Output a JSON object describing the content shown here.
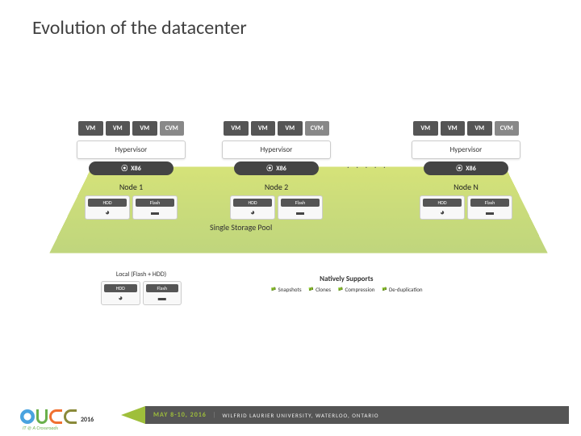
{
  "title": "Evolution of the datacenter",
  "vm_label": "VM",
  "cvm_label": "CVM",
  "hypervisor_label": "Hypervisor",
  "x86_label": "X86",
  "nodes": {
    "n1": "Node 1",
    "n2": "Node 2",
    "n3": "Node N"
  },
  "storage": {
    "hdd": "HDD",
    "flash": "Flash"
  },
  "dots": ". . . . .",
  "storage_pool": "Single Storage Pool",
  "callout_label": "Local (Flash + HDD)",
  "natively": {
    "title": "Natively Supports",
    "items": {
      "a": "Snapshots",
      "b": "Clones",
      "c": "Compression",
      "d": "De-duplication"
    }
  },
  "footer": {
    "year": "2016",
    "tagline": "IT @ A Crossroads",
    "date": "MAY 8-10, 2016",
    "venue": "WILFRID LAURIER UNIVERSITY, WATERLOO, ONTARIO"
  },
  "colors": {
    "vm_bg": "#555555",
    "cvm_bg": "#888888",
    "accent_green": "#9fbf3b",
    "x86_bg": "#444444",
    "footer_bar": "#555555"
  }
}
